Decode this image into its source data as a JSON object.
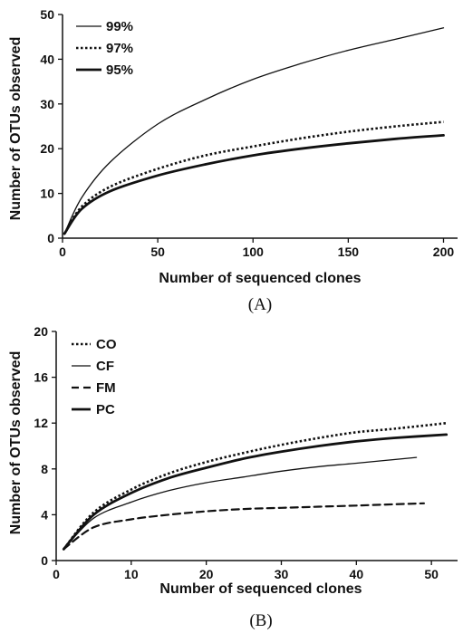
{
  "chart_data": [
    {
      "type": "line",
      "panel_label": "(A)",
      "xlabel": "Number of sequenced clones",
      "ylabel": "Number of OTUs observed",
      "xlim": [
        0,
        205
      ],
      "ylim": [
        0,
        50
      ],
      "xticks": [
        0,
        50,
        100,
        150,
        200
      ],
      "yticks": [
        0,
        10,
        20,
        30,
        40,
        50
      ],
      "grid": false,
      "legend_position": "top-left",
      "series": [
        {
          "name": "99%",
          "style": "thin-solid",
          "x": [
            1,
            10,
            25,
            50,
            75,
            100,
            125,
            150,
            175,
            200
          ],
          "y": [
            1,
            9,
            17,
            25.5,
            31,
            35.5,
            39,
            42,
            44.5,
            47
          ]
        },
        {
          "name": "97%",
          "style": "dotted",
          "x": [
            1,
            10,
            25,
            50,
            75,
            100,
            125,
            150,
            175,
            200
          ],
          "y": [
            1,
            7,
            11.5,
            15.5,
            18.5,
            20.5,
            22.3,
            23.8,
            25,
            26
          ]
        },
        {
          "name": "95%",
          "style": "thick-solid",
          "x": [
            1,
            10,
            25,
            50,
            75,
            100,
            125,
            150,
            175,
            200
          ],
          "y": [
            1,
            6.5,
            10.5,
            14,
            16.5,
            18.5,
            20,
            21.2,
            22.2,
            23
          ]
        }
      ]
    },
    {
      "type": "line",
      "panel_label": "(B)",
      "xlabel": "Number of sequenced clones",
      "ylabel": "Number of OTUs observed",
      "xlim": [
        0,
        53
      ],
      "ylim": [
        0,
        20
      ],
      "xticks": [
        0,
        10,
        20,
        30,
        40,
        50
      ],
      "yticks": [
        0,
        4,
        8,
        12,
        16,
        20
      ],
      "grid": false,
      "legend_position": "top-left",
      "series": [
        {
          "name": "CO",
          "style": "dotted",
          "x": [
            1,
            5,
            10,
            15,
            20,
            25,
            30,
            35,
            40,
            45,
            52
          ],
          "y": [
            1,
            4.2,
            6.2,
            7.6,
            8.6,
            9.4,
            10.1,
            10.7,
            11.2,
            11.5,
            12
          ]
        },
        {
          "name": "CF",
          "style": "thin-solid",
          "x": [
            1,
            5,
            10,
            15,
            20,
            25,
            30,
            35,
            40,
            48
          ],
          "y": [
            1,
            3.7,
            5.1,
            6.1,
            6.8,
            7.3,
            7.8,
            8.2,
            8.5,
            9
          ]
        },
        {
          "name": "FM",
          "style": "dashed",
          "x": [
            1,
            5,
            10,
            15,
            20,
            25,
            30,
            35,
            40,
            49
          ],
          "y": [
            1,
            2.9,
            3.6,
            4.0,
            4.3,
            4.5,
            4.6,
            4.7,
            4.8,
            5
          ]
        },
        {
          "name": "PC",
          "style": "thick-solid",
          "x": [
            1,
            5,
            10,
            15,
            20,
            25,
            30,
            35,
            40,
            45,
            52
          ],
          "y": [
            1,
            4.0,
            5.9,
            7.2,
            8.1,
            8.9,
            9.5,
            10.0,
            10.4,
            10.7,
            11
          ]
        }
      ]
    }
  ]
}
